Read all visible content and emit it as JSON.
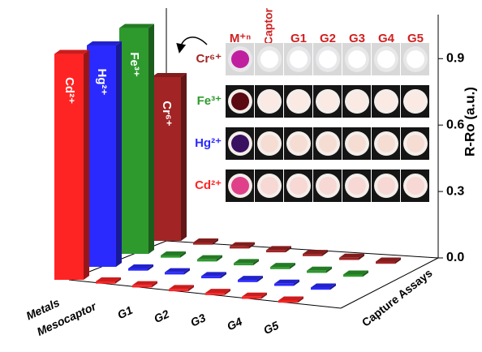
{
  "chart_data": {
    "type": "bar3d",
    "categories": [
      "Metals",
      "Mesocaptor",
      "G1",
      "G2",
      "G3",
      "G4",
      "G5"
    ],
    "series": [
      {
        "name": "Cd²⁺",
        "color": "#ff2424",
        "values": [
          1.02,
          0.01,
          0.01,
          0.01,
          0.01,
          0.01,
          0.01
        ]
      },
      {
        "name": "Hg²⁺",
        "color": "#2a2aff",
        "values": [
          1.0,
          0.01,
          0.01,
          0.01,
          0.01,
          0.01,
          0.01
        ]
      },
      {
        "name": "Fe³⁺",
        "color": "#2e9a2e",
        "values": [
          1.02,
          0.01,
          0.01,
          0.01,
          0.01,
          0.01,
          0.01
        ]
      },
      {
        "name": "Cr⁶⁺",
        "color": "#a32424",
        "values": [
          0.74,
          0.01,
          0.01,
          0.01,
          0.01,
          0.01,
          0.01
        ]
      }
    ],
    "ylabel": "R-Ro (a.u.)",
    "zlabel": "Capture Assays",
    "ylim": [
      0,
      1.1
    ],
    "yticks": [
      {
        "value": 0,
        "label": "0.0"
      },
      0.3,
      0.6,
      0.9
    ],
    "inset": {
      "columns": [
        "M⁺ⁿ",
        "Captor",
        "G1",
        "G2",
        "G3",
        "G4",
        "G5"
      ],
      "rows": [
        "Cr⁶⁺",
        "Fe³⁺",
        "Hg²⁺",
        "Cd²⁺"
      ]
    }
  }
}
